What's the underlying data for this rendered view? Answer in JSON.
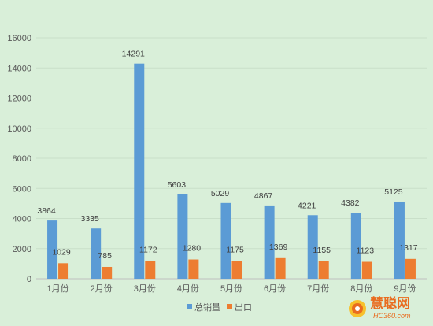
{
  "colors": {
    "background": "#d9efd9",
    "series_1": "#5b9bd5",
    "series_2": "#ed7d31",
    "gridline": "#c9dfc9",
    "axis": "#bfbfbf"
  },
  "chart_data": {
    "type": "bar",
    "title": "",
    "xlabel": "",
    "ylabel": "",
    "categories": [
      "1月份",
      "2月份",
      "3月份",
      "4月份",
      "5月份",
      "6月份",
      "7月份",
      "8月份",
      "9月份"
    ],
    "series": [
      {
        "name": "总销量",
        "values": [
          3864,
          3335,
          14291,
          5603,
          5029,
          4867,
          4221,
          4382,
          5125
        ]
      },
      {
        "name": "出口",
        "values": [
          1029,
          785,
          1172,
          1280,
          1175,
          1369,
          1155,
          1123,
          1317
        ]
      }
    ],
    "ylim": [
      0,
      16000
    ],
    "yticks": [
      "0",
      "2000",
      "4000",
      "6000",
      "8000",
      "10000",
      "12000",
      "14000",
      "16000"
    ],
    "grid": true,
    "legend_position": "bottom",
    "data_labels": true
  },
  "watermark": {
    "name": "慧聪网",
    "domain": "HC360.com",
    "icon": "hc360-logo-icon"
  }
}
